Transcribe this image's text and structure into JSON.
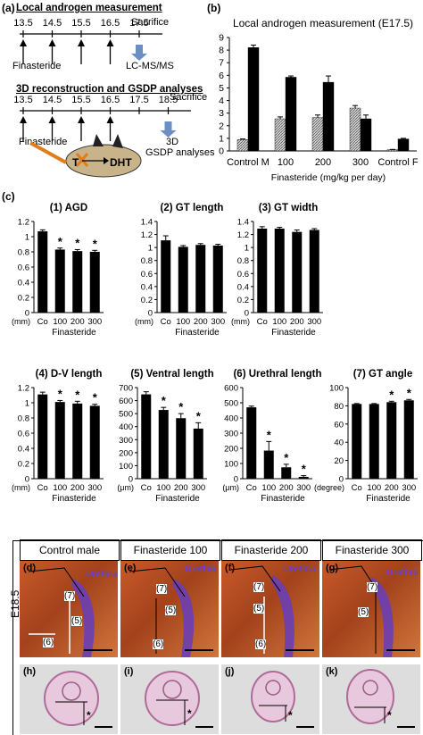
{
  "panel_a": {
    "label": "(a)",
    "title1": "Local androgen measurement",
    "title2": "3D reconstruction and GSDP analyses",
    "days1": [
      "13.5",
      "14.5",
      "15.5",
      "16.5",
      "17.5"
    ],
    "days2": [
      "13.5",
      "14.5",
      "15.5",
      "16.5",
      "17.5",
      "18.5"
    ],
    "sacrifice": "Sacrifice",
    "finasteride": "Finasteride",
    "lcms": "LC-MS/MS",
    "gsdp1": "3D",
    "gsdp2": "GSDP analyses",
    "t": "T",
    "dht": "DHT"
  },
  "panel_b": {
    "label": "(b)"
  },
  "panel_c": {
    "label": "(c)"
  },
  "chart_data": [
    {
      "id": "b",
      "type": "bar",
      "title": "Local androgen measurement (E17.5)",
      "categories": [
        "Control M",
        "100",
        "200",
        "300",
        "Control F"
      ],
      "xlabel": "Finasteride (mg/kg per day)",
      "ylim": [
        0,
        9
      ],
      "yticks": [
        "0",
        "1",
        "2",
        "3",
        "4",
        "5",
        "6",
        "7",
        "8",
        "9"
      ],
      "series": [
        {
          "style": "hatched",
          "values": [
            0.9,
            2.55,
            2.65,
            3.4,
            0.1
          ],
          "err": [
            0.05,
            0.15,
            0.2,
            0.2,
            0.02
          ]
        },
        {
          "style": "black",
          "values": [
            8.2,
            5.85,
            5.45,
            2.55,
            0.95
          ],
          "err": [
            0.2,
            0.1,
            0.5,
            0.3,
            0.05
          ]
        }
      ]
    },
    {
      "id": "c1",
      "type": "bar",
      "title": "(1) AGD",
      "categories": [
        "Co",
        "100",
        "200",
        "300"
      ],
      "values": [
        1.07,
        0.83,
        0.81,
        0.8
      ],
      "err": [
        0.02,
        0.02,
        0.02,
        0.02
      ],
      "sig": [
        "",
        "*",
        "*",
        "*"
      ],
      "ylim": [
        0,
        1.2
      ],
      "yticks": [
        "0",
        "0.2",
        "0.4",
        "0.6",
        "0.8",
        "1",
        "1.2"
      ],
      "unit": "(mm)",
      "xlabel": "Finasteride"
    },
    {
      "id": "c2",
      "type": "bar",
      "title": "(2) GT length",
      "categories": [
        "Co",
        "100",
        "200",
        "300"
      ],
      "values": [
        1.11,
        1.01,
        1.04,
        1.03
      ],
      "err": [
        0.07,
        0.02,
        0.02,
        0.02
      ],
      "sig": [
        "",
        "",
        "",
        ""
      ],
      "ylim": [
        0,
        1.4
      ],
      "yticks": [
        "0",
        "0.2",
        "0.4",
        "0.6",
        "0.8",
        "1",
        "1.2",
        "1.4"
      ],
      "unit": "(mm)",
      "xlabel": "Finasteride"
    },
    {
      "id": "c3",
      "type": "bar",
      "title": "(3) GT width",
      "categories": [
        "Co",
        "100",
        "200",
        "300"
      ],
      "values": [
        1.29,
        1.29,
        1.24,
        1.27
      ],
      "err": [
        0.03,
        0.02,
        0.03,
        0.02
      ],
      "sig": [
        "",
        "",
        "",
        ""
      ],
      "ylim": [
        0,
        1.4
      ],
      "yticks": [
        "0",
        "0.2",
        "0.4",
        "0.6",
        "0.8",
        "1",
        "1.2",
        "1.4"
      ],
      "unit": "(mm)",
      "xlabel": "Finasteride"
    },
    {
      "id": "c4",
      "type": "bar",
      "title": "(4) D-V length",
      "categories": [
        "Co",
        "100",
        "200",
        "300"
      ],
      "values": [
        1.11,
        1.01,
        0.99,
        0.96
      ],
      "err": [
        0.03,
        0.02,
        0.03,
        0.02
      ],
      "sig": [
        "",
        "*",
        "*",
        "*"
      ],
      "ylim": [
        0,
        1.2
      ],
      "yticks": [
        "0",
        "0.2",
        "0.4",
        "0.6",
        "0.8",
        "1",
        "1.2"
      ],
      "unit": "(mm)",
      "xlabel": "Finasteride"
    },
    {
      "id": "c5",
      "type": "bar",
      "title": "(5) Ventral length",
      "categories": [
        "Co",
        "100",
        "200",
        "300"
      ],
      "values": [
        648,
        528,
        465,
        385
      ],
      "err": [
        20,
        20,
        35,
        45
      ],
      "sig": [
        "",
        "*",
        "*",
        "*"
      ],
      "ylim": [
        0,
        700
      ],
      "yticks": [
        "0",
        "100",
        "200",
        "300",
        "400",
        "500",
        "600",
        "700"
      ],
      "unit": "(μm)",
      "xlabel": "Finasteride"
    },
    {
      "id": "c6",
      "type": "bar",
      "title": "(6) Urethral length",
      "categories": [
        "Co",
        "100",
        "200",
        "300"
      ],
      "values": [
        470,
        185,
        75,
        12
      ],
      "err": [
        8,
        60,
        20,
        8
      ],
      "sig": [
        "",
        "*",
        "*",
        "*"
      ],
      "ylim": [
        0,
        600
      ],
      "yticks": [
        "0",
        "100",
        "200",
        "300",
        "400",
        "500",
        "600"
      ],
      "unit": "(μm)",
      "xlabel": "Finasteride"
    },
    {
      "id": "c7",
      "type": "bar",
      "title": "(7) GT angle",
      "categories": [
        "Co",
        "100",
        "200",
        "300"
      ],
      "values": [
        82,
        82,
        84,
        86
      ],
      "err": [
        0.5,
        0.5,
        1,
        1
      ],
      "sig": [
        "",
        "",
        "*",
        "*"
      ],
      "ylim": [
        0,
        100
      ],
      "yticks": [
        "0",
        "20",
        "40",
        "60",
        "80",
        "100"
      ],
      "unit": "(degree)",
      "xlabel": "Finasteride"
    }
  ],
  "images": {
    "headers": [
      "Control male",
      "Finasteride 100",
      "Finasteride 200",
      "Finasteride 300"
    ],
    "side": "E18.5",
    "labels_top": [
      "(d)",
      "(e)",
      "(f)",
      "(g)"
    ],
    "labels_bottom": [
      "(h)",
      "(i)",
      "(j)",
      "(k)"
    ],
    "urethra": "Urethra",
    "m7": "(7)",
    "m5": "(5)",
    "m6": "(6)",
    "star": "*"
  }
}
